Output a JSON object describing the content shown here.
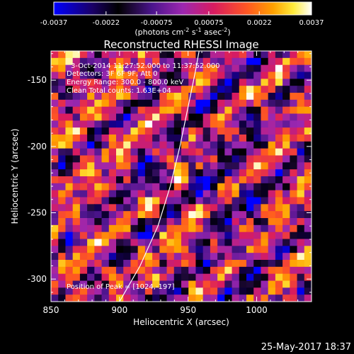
{
  "chart_data": {
    "type": "heatmap",
    "title": "Reconstructed RHESSI Image",
    "xlabel": "Heliocentric X (arcsec)",
    "ylabel": "Heliocentric Y (arcsec)",
    "xlim": [
      850,
      1040
    ],
    "ylim": [
      -317,
      -128
    ],
    "x_ticks": [
      "850",
      "900",
      "950",
      "1000"
    ],
    "x_tick_values": [
      850,
      900,
      950,
      1000
    ],
    "y_ticks": [
      "-300",
      "-250",
      "-200",
      "-150"
    ],
    "y_tick_values": [
      -300,
      -250,
      -200,
      -150
    ],
    "colorbar": {
      "ticks": [
        "-0.0037",
        "-0.0022",
        "-0.00075",
        "0.00075",
        "0.0022",
        "0.0037"
      ],
      "tick_values": [
        -0.0037,
        -0.0022,
        -0.00075,
        0.00075,
        0.0022,
        0.0037
      ],
      "range": [
        -0.0037,
        0.0037
      ],
      "unit_label": "(photons cm",
      "unit_exp1": "-2",
      "unit_mid": " s",
      "unit_exp2": "-1",
      "unit_mid2": " asec",
      "unit_exp3": "-2",
      "unit_end": ")",
      "colormap": [
        "#0000ff",
        "#1a0066",
        "#000000",
        "#4a148c",
        "#9c27b0",
        "#d81b60",
        "#ff5722",
        "#ffa000",
        "#ffeb3b",
        "#ffffff"
      ]
    },
    "annotations": {
      "time_range": "3-Oct-2014 11:27:52.000 to 11:37:52.000",
      "detectors": "Detectors: 3F 6F 9F, Att 0",
      "energy": "Energy Range: 300.0 - 800.0 keV",
      "method": "Clean    Total counts: 1.63E+04",
      "peak": "Position of Peak = [1024,-197]"
    },
    "limb_curve": [
      [
        900,
        -317
      ],
      [
        915,
        -290
      ],
      [
        928,
        -260
      ],
      [
        937,
        -230
      ],
      [
        944,
        -200
      ],
      [
        950,
        -170
      ],
      [
        955,
        -145
      ],
      [
        958,
        -128
      ]
    ],
    "grid_size": [
      36,
      36
    ]
  },
  "footer": {
    "date": "25-May-2017 18:37"
  }
}
